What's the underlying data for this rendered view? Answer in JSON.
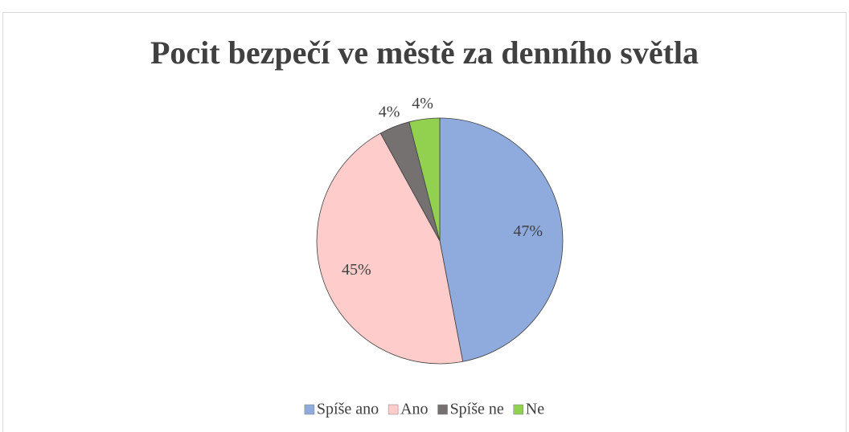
{
  "chart_data": {
    "type": "pie",
    "title": "Pocit bezpečí ve městě za denního světla",
    "categories": [
      "Spíše ano",
      "Ano",
      "Spíše ne",
      "Ne"
    ],
    "values": [
      47,
      45,
      4,
      4
    ],
    "value_labels": [
      "47%",
      "45%",
      "4%",
      "4%"
    ],
    "colors": [
      "#8faadc",
      "#ffcccc",
      "#767171",
      "#92d050"
    ],
    "legend": "bottom"
  }
}
